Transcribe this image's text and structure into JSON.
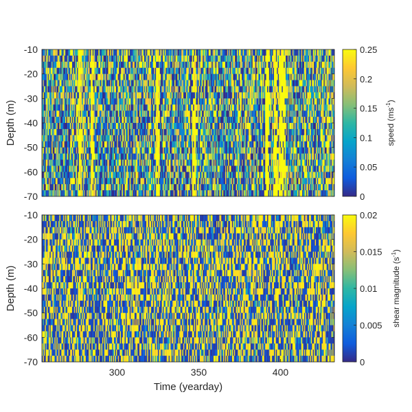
{
  "chart_data": [
    {
      "type": "heatmap",
      "ylabel": "Depth (m)",
      "xlabel": "",
      "xlim": [
        254,
        433
      ],
      "ylim": [
        -70,
        -10
      ],
      "yticks": [
        -10,
        -20,
        -30,
        -40,
        -50,
        -60,
        -70
      ],
      "colorbar": {
        "label": "speed (ms",
        "label_sup": "-1",
        "label_end": ")",
        "clim": [
          0,
          0.25
        ],
        "ticks": [
          "0.25",
          "0.2",
          "0.15",
          "0.1",
          "0.05",
          "0"
        ],
        "tick_values": [
          0.25,
          0.2,
          0.15,
          0.1,
          0.05,
          0
        ]
      },
      "colormap": "parula",
      "grid": false,
      "columns": 300,
      "rows": 24,
      "value_pattern": "speed varies strongly with time; near-saturated yellow bands around yeardays ~277, ~285, ~325, ~347, ~392, ~397-402; shallow values slightly higher",
      "seed": 11
    },
    {
      "type": "heatmap",
      "ylabel": "Depth (m)",
      "xlabel": "Time (yearday)",
      "xlim": [
        254,
        433
      ],
      "ylim": [
        -70,
        -10
      ],
      "xticks": [
        "300",
        "350",
        "400"
      ],
      "xtick_values": [
        300,
        350,
        400
      ],
      "yticks": [
        -10,
        -20,
        -30,
        -40,
        -50,
        -60,
        -70
      ],
      "colorbar": {
        "label": "shear magnitude (s",
        "label_sup": "-1",
        "label_end": ")",
        "clim": [
          0,
          0.02
        ],
        "ticks": [
          "0.02",
          "0.015",
          "0.01",
          "0.005",
          "0"
        ],
        "tick_values": [
          0.02,
          0.015,
          0.01,
          0.005,
          0
        ]
      },
      "colormap": "parula",
      "grid": false,
      "columns": 300,
      "rows": 24,
      "value_pattern": "shear saturates frequently; dominated by deep blue and bright yellow cells",
      "seed": 29
    }
  ]
}
